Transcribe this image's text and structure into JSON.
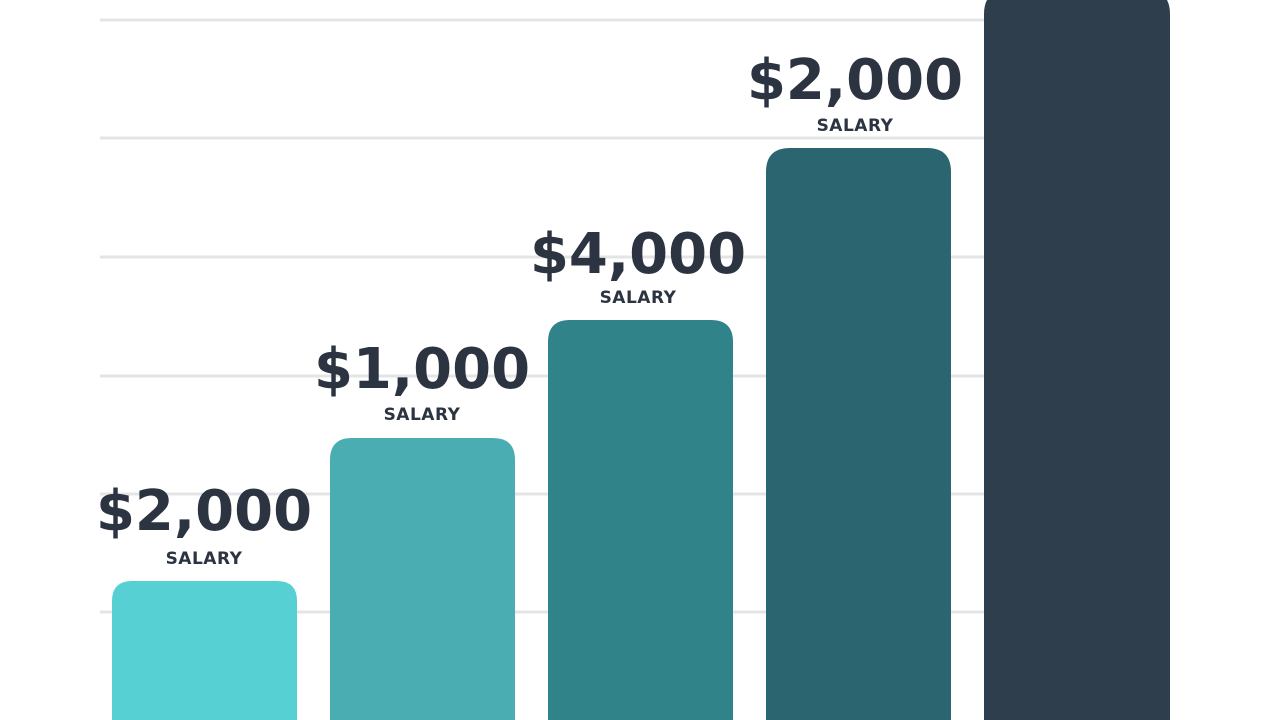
{
  "bars": [
    {
      "amount": "$2,000",
      "caption": "SALARY"
    },
    {
      "amount": "$1,000",
      "caption": "SALARY"
    },
    {
      "amount": "$4,000",
      "caption": "SALARY"
    },
    {
      "amount": "$2,000",
      "caption": "SALARY"
    }
  ]
}
